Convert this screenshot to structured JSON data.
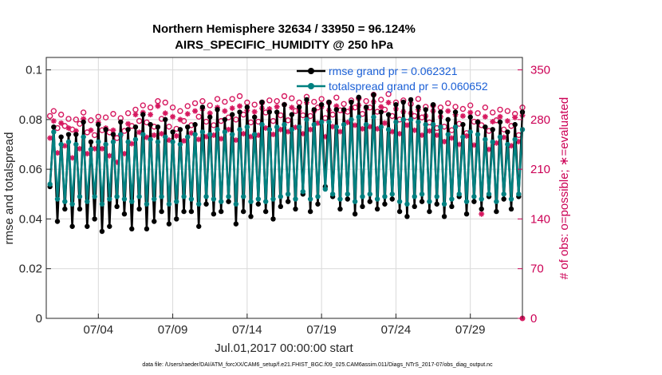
{
  "chart_data": {
    "type": "line",
    "title_line1": "Northern Hemisphere 32634 / 33950 = 96.124%",
    "title_line2": "AIRS_SPECIFIC_HUMIDITY @ 250 hPa",
    "xlabel": "Jul.01,2017 00:00:00 start",
    "ylabel": "rmse and totalspread",
    "ylabel_right": "# of obs: o=possible; ∗=evaluated",
    "x_tick_labels": [
      "07/04",
      "07/09",
      "07/14",
      "07/19",
      "07/24",
      "07/29"
    ],
    "x_tick_days": [
      3.5,
      8.5,
      13.5,
      18.5,
      23.5,
      28.5
    ],
    "xlim": [
      0,
      32
    ],
    "ylim": [
      0,
      0.105
    ],
    "y_ticks": [
      0,
      0.02,
      0.04,
      0.06,
      0.08,
      0.1
    ],
    "y_tick_labels": [
      "0",
      "0.02",
      "0.04",
      "0.06",
      "0.08",
      "0.1"
    ],
    "ylim_right": [
      0,
      367.5
    ],
    "y_ticks_right": [
      0,
      70,
      140,
      210,
      280,
      350
    ],
    "y_tick_labels_right": [
      "0",
      "70",
      "140",
      "210",
      "280",
      "350"
    ],
    "legend_location": "top-right",
    "series": [
      {
        "name": "rmse grand pr = 0.062321",
        "color": "#000000",
        "marker": "filled-circle",
        "values": [
          0.053,
          0.077,
          0.039,
          0.073,
          0.044,
          0.074,
          0.037,
          0.074,
          0.044,
          0.079,
          0.037,
          0.071,
          0.04,
          0.078,
          0.035,
          0.076,
          0.037,
          0.074,
          0.045,
          0.079,
          0.042,
          0.076,
          0.036,
          0.077,
          0.044,
          0.082,
          0.036,
          0.078,
          0.039,
          0.077,
          0.043,
          0.08,
          0.038,
          0.075,
          0.04,
          0.076,
          0.043,
          0.077,
          0.043,
          0.078,
          0.037,
          0.085,
          0.046,
          0.081,
          0.042,
          0.084,
          0.043,
          0.08,
          0.047,
          0.082,
          0.038,
          0.083,
          0.043,
          0.085,
          0.041,
          0.081,
          0.046,
          0.087,
          0.043,
          0.083,
          0.04,
          0.083,
          0.045,
          0.086,
          0.047,
          0.082,
          0.044,
          0.085,
          0.05,
          0.088,
          0.043,
          0.084,
          0.046,
          0.086,
          0.053,
          0.087,
          0.049,
          0.084,
          0.044,
          0.084,
          0.048,
          0.087,
          0.042,
          0.089,
          0.045,
          0.085,
          0.047,
          0.09,
          0.044,
          0.083,
          0.046,
          0.082,
          0.048,
          0.086,
          0.043,
          0.087,
          0.041,
          0.088,
          0.045,
          0.085,
          0.047,
          0.084,
          0.043,
          0.086,
          0.046,
          0.083,
          0.041,
          0.08,
          0.045,
          0.083,
          0.049,
          0.078,
          0.042,
          0.081,
          0.047,
          0.079,
          0.044,
          0.077,
          0.049,
          0.076,
          0.043,
          0.079,
          0.048,
          0.075,
          0.044,
          0.078,
          0.049,
          0.083
        ]
      },
      {
        "name": "totalspread grand pr = 0.060652",
        "color": "#008080",
        "marker": "filled-circle",
        "values": [
          0.054,
          0.075,
          0.048,
          0.07,
          0.047,
          0.071,
          0.046,
          0.07,
          0.049,
          0.073,
          0.047,
          0.068,
          0.049,
          0.071,
          0.046,
          0.07,
          0.048,
          0.071,
          0.049,
          0.074,
          0.048,
          0.071,
          0.047,
          0.072,
          0.049,
          0.074,
          0.046,
          0.072,
          0.048,
          0.071,
          0.049,
          0.073,
          0.046,
          0.071,
          0.047,
          0.07,
          0.049,
          0.073,
          0.048,
          0.074,
          0.046,
          0.075,
          0.049,
          0.074,
          0.048,
          0.076,
          0.047,
          0.075,
          0.049,
          0.074,
          0.046,
          0.076,
          0.049,
          0.077,
          0.047,
          0.074,
          0.048,
          0.078,
          0.047,
          0.076,
          0.048,
          0.077,
          0.049,
          0.078,
          0.05,
          0.076,
          0.048,
          0.077,
          0.051,
          0.08,
          0.048,
          0.078,
          0.049,
          0.079,
          0.052,
          0.079,
          0.05,
          0.077,
          0.048,
          0.078,
          0.05,
          0.08,
          0.047,
          0.081,
          0.049,
          0.078,
          0.05,
          0.081,
          0.048,
          0.077,
          0.049,
          0.076,
          0.05,
          0.079,
          0.047,
          0.08,
          0.046,
          0.08,
          0.049,
          0.079,
          0.05,
          0.078,
          0.047,
          0.078,
          0.049,
          0.077,
          0.046,
          0.074,
          0.048,
          0.077,
          0.05,
          0.073,
          0.047,
          0.075,
          0.049,
          0.074,
          0.048,
          0.072,
          0.05,
          0.071,
          0.047,
          0.073,
          0.05,
          0.07,
          0.048,
          0.072,
          0.05,
          0.076
        ]
      }
    ],
    "obs_possible": {
      "name": "possible (o)",
      "color": "#d6185f",
      "marker": "open-circle",
      "values": [
        285,
        292,
        268,
        287,
        271,
        281,
        266,
        280,
        274,
        290,
        262,
        279,
        258,
        284,
        265,
        283,
        262,
        288,
        254,
        282,
        264,
        289,
        271,
        294,
        278,
        300,
        276,
        297,
        270,
        306,
        281,
        304,
        270,
        297,
        267,
        292,
        278,
        299,
        272,
        303,
        284,
        306,
        277,
        300,
        272,
        309,
        278,
        305,
        283,
        309,
        280,
        313,
        287,
        304,
        276,
        301,
        277,
        304,
        290,
        307,
        278,
        306,
        286,
        313,
        279,
        310,
        292,
        304,
        286,
        312,
        285,
        305,
        297,
        309,
        282,
        304,
        287,
        311,
        293,
        302,
        291,
        307,
        297,
        310,
        288,
        306,
        297,
        315,
        291,
        308,
        294,
        316,
        285,
        304,
        280,
        307,
        277,
        302,
        285,
        309,
        283,
        298,
        276,
        300,
        268,
        297,
        270,
        303,
        265,
        298,
        274,
        295,
        261,
        300,
        277,
        289,
        272,
        297,
        264,
        290,
        279,
        294,
        266,
        292,
        271,
        288,
        258,
        297
      ]
    },
    "obs_evaluated": {
      "name": "evaluated (*)",
      "color": "#d6185f",
      "marker": "asterisk",
      "values": [
        254,
        278,
        233,
        275,
        243,
        268,
        226,
        264,
        239,
        281,
        232,
        265,
        239,
        276,
        239,
        268,
        229,
        265,
        220,
        258,
        232,
        274,
        246,
        287,
        262,
        290,
        255,
        287,
        258,
        299,
        260,
        289,
        251,
        284,
        257,
        280,
        250,
        288,
        261,
        292,
        252,
        295,
        256,
        289,
        258,
        297,
        253,
        292,
        266,
        296,
        251,
        299,
        260,
        293,
        256,
        291,
        258,
        296,
        268,
        295,
        259,
        298,
        266,
        301,
        263,
        297,
        269,
        292,
        260,
        304,
        266,
        292,
        275,
        298,
        256,
        293,
        270,
        299,
        263,
        292,
        276,
        296,
        272,
        300,
        267,
        296,
        270,
        305,
        267,
        298,
        275,
        304,
        263,
        295,
        260,
        291,
        272,
        289,
        265,
        294,
        258,
        285,
        264,
        292,
        258,
        284,
        249,
        292,
        254,
        287,
        245,
        285,
        257,
        290,
        244,
        277,
        147,
        284,
        238,
        277,
        247,
        284,
        255,
        278,
        243,
        283,
        249,
        286
      ]
    }
  },
  "footer": {
    "text": "data file: /Users/raeder/DAI/ATM_forcXX/CAM6_setup/f.e21.FHIST_BGC.f09_025.CAM6assim.011/Diags_NTrS_2017-07/obs_diag_output.nc"
  }
}
